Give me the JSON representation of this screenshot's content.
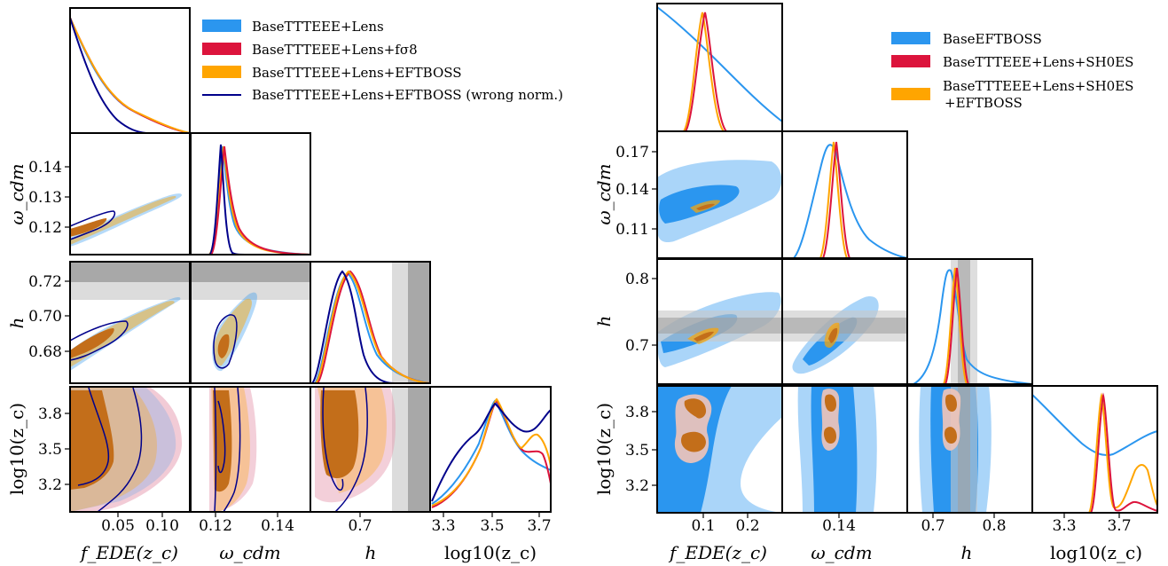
{
  "colors": {
    "blue": "#2b96ef",
    "red": "#dc143c",
    "orange": "#ffa500",
    "navy": "#00008b",
    "band_dark": "#a8a8a8",
    "band_light": "#dcdcdc"
  },
  "chart_data": [
    {
      "type": "corner-triangle",
      "parameters": [
        "f_EDE(z_c)",
        "omega_cdm",
        "h",
        "log10(z_c)"
      ],
      "legend": [
        {
          "label": "BaseTTTEEE+Lens",
          "color": "#2b96ef",
          "style": "patch"
        },
        {
          "label": "BaseTTTEEE+Lens+fσ8",
          "color": "#dc143c",
          "style": "patch"
        },
        {
          "label": "BaseTTTEEE+Lens+EFTBOSS",
          "color": "#ffa500",
          "style": "patch"
        },
        {
          "label": "BaseTTTEEE+Lens+EFTBOSS (wrong norm.)",
          "color": "#00008b",
          "style": "line"
        }
      ],
      "axis_labels": {
        "x": [
          "f_EDE(z_c)",
          "ω_cdm",
          "h",
          "log10(z_c)"
        ],
        "y": [
          "ω_cdm",
          "h",
          "log10(z_c)"
        ]
      },
      "x_ticks": [
        [
          "0.05",
          "0.10"
        ],
        [
          "0.12",
          "0.14"
        ],
        [
          "0.7"
        ],
        [
          "3.3",
          "3.5",
          "3.7"
        ]
      ],
      "y_ticks": {
        "omega_cdm": [
          "0.12",
          "0.13",
          "0.14"
        ],
        "h": [
          "0.68",
          "0.70",
          "0.72"
        ],
        "log10_zc": [
          "3.2",
          "3.5",
          "3.8"
        ]
      },
      "ranges": {
        "f_EDE": [
          0.0,
          0.12
        ],
        "omega_cdm": [
          0.112,
          0.148
        ],
        "h": [
          0.665,
          0.73
        ],
        "log10_zc": [
          3.08,
          3.95
        ]
      },
      "prior_bands": {
        "h": [
          0.71,
          0.728
        ]
      }
    },
    {
      "type": "corner-triangle",
      "parameters": [
        "f_EDE(z_c)",
        "omega_cdm",
        "h",
        "log10(z_c)"
      ],
      "legend": [
        {
          "label": "BaseEFTBOSS",
          "color": "#2b96ef",
          "style": "patch"
        },
        {
          "label": "BaseTTTEEE+Lens+SH0ES",
          "color": "#dc143c",
          "style": "patch"
        },
        {
          "label": "BaseTTTEEE+Lens+SH0ES",
          "label2": "+EFTBOSS",
          "color": "#ffa500",
          "style": "patch"
        }
      ],
      "axis_labels": {
        "x": [
          "f_EDE(z_c)",
          "ω_cdm",
          "h",
          "log10(z_c)"
        ],
        "y": [
          "ω_cdm",
          "h",
          "log10(z_c)"
        ]
      },
      "x_ticks": [
        [
          "0.1",
          "0.2"
        ],
        [
          "0.14"
        ],
        [
          "0.7",
          "0.8"
        ],
        [
          "3.3",
          "3.7"
        ]
      ],
      "y_ticks": {
        "omega_cdm": [
          "0.11",
          "0.14",
          "0.17"
        ],
        "h": [
          "0.7",
          "0.8"
        ],
        "log10_zc": [
          "3.2",
          "3.5",
          "3.8"
        ]
      },
      "ranges": {
        "f_EDE": [
          0.0,
          0.28
        ],
        "omega_cdm": [
          0.09,
          0.19
        ],
        "h": [
          0.64,
          0.84
        ],
        "log10_zc": [
          3.08,
          3.95
        ]
      },
      "prior_bands": {
        "h": [
          0.714,
          0.746
        ]
      }
    }
  ]
}
